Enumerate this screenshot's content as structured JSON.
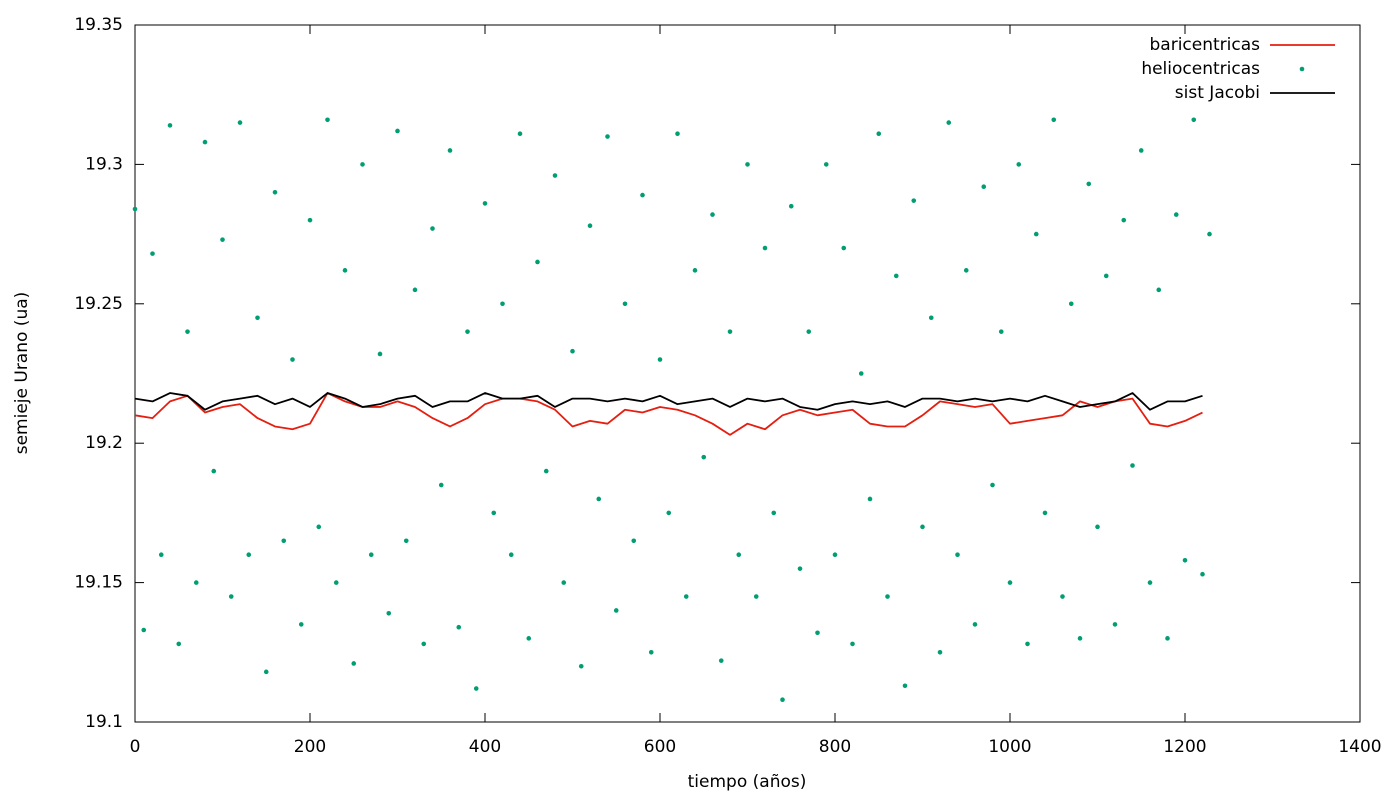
{
  "chart_data": {
    "type": "line",
    "xlabel": "tiempo (años)",
    "ylabel": "semieje Urano (ua)",
    "xlim": [
      0,
      1400
    ],
    "xticks": [
      0,
      200,
      400,
      600,
      800,
      1000,
      1200,
      1400
    ],
    "ylim": [
      19.1,
      19.35
    ],
    "yticks": [
      19.1,
      19.15,
      19.2,
      19.25,
      19.3,
      19.35
    ],
    "legend": "top-right",
    "grid": false,
    "series": [
      {
        "name": "baricentricas",
        "color": "#e51e10",
        "style": "line",
        "x": [
          0,
          20,
          40,
          60,
          80,
          100,
          120,
          140,
          160,
          180,
          200,
          220,
          240,
          260,
          280,
          300,
          320,
          340,
          360,
          380,
          400,
          420,
          440,
          460,
          480,
          500,
          520,
          540,
          560,
          580,
          600,
          620,
          640,
          660,
          680,
          700,
          720,
          740,
          760,
          780,
          800,
          820,
          840,
          860,
          880,
          900,
          920,
          940,
          960,
          980,
          1000,
          1020,
          1040,
          1060,
          1080,
          1100,
          1120,
          1140,
          1160,
          1180,
          1200,
          1220
        ],
        "values": [
          19.21,
          19.209,
          19.215,
          19.217,
          19.211,
          19.213,
          19.214,
          19.209,
          19.206,
          19.205,
          19.207,
          19.218,
          19.215,
          19.213,
          19.213,
          19.215,
          19.213,
          19.209,
          19.206,
          19.209,
          19.214,
          19.216,
          19.216,
          19.215,
          19.212,
          19.206,
          19.208,
          19.207,
          19.212,
          19.211,
          19.213,
          19.212,
          19.21,
          19.207,
          19.203,
          19.207,
          19.205,
          19.21,
          19.212,
          19.21,
          19.211,
          19.212,
          19.207,
          19.206,
          19.206,
          19.21,
          19.215,
          19.214,
          19.213,
          19.214,
          19.207,
          19.208,
          19.209,
          19.21,
          19.215,
          19.213,
          19.215,
          19.216,
          19.207,
          19.206,
          19.208,
          19.211
        ]
      },
      {
        "name": "heliocentricas",
        "color": "#009e73",
        "style": "points",
        "x": [
          0,
          10,
          20,
          30,
          40,
          50,
          60,
          70,
          80,
          90,
          100,
          110,
          120,
          130,
          140,
          150,
          160,
          170,
          180,
          190,
          200,
          210,
          220,
          230,
          240,
          250,
          260,
          270,
          280,
          290,
          300,
          310,
          320,
          330,
          340,
          350,
          360,
          370,
          380,
          390,
          400,
          410,
          420,
          430,
          440,
          450,
          460,
          470,
          480,
          490,
          500,
          510,
          520,
          530,
          540,
          550,
          560,
          570,
          580,
          590,
          600,
          610,
          620,
          630,
          640,
          650,
          660,
          670,
          680,
          690,
          700,
          710,
          720,
          730,
          740,
          750,
          760,
          770,
          780,
          790,
          800,
          810,
          820,
          830,
          840,
          850,
          860,
          870,
          880,
          890,
          900,
          910,
          920,
          930,
          940,
          950,
          960,
          970,
          980,
          990,
          1000,
          1010,
          1020,
          1030,
          1040,
          1050,
          1060,
          1070,
          1080,
          1090,
          1100,
          1110,
          1120,
          1130,
          1140,
          1150,
          1160,
          1170,
          1180,
          1190,
          1200,
          1210,
          1220,
          1228
        ],
        "values": [
          19.284,
          19.133,
          19.268,
          19.16,
          19.314,
          19.128,
          19.24,
          19.15,
          19.308,
          19.19,
          19.273,
          19.145,
          19.315,
          19.16,
          19.245,
          19.118,
          19.29,
          19.165,
          19.23,
          19.135,
          19.28,
          19.17,
          19.316,
          19.15,
          19.262,
          19.121,
          19.3,
          19.16,
          19.232,
          19.139,
          19.312,
          19.165,
          19.255,
          19.128,
          19.277,
          19.185,
          19.305,
          19.134,
          19.24,
          19.112,
          19.286,
          19.175,
          19.25,
          19.16,
          19.311,
          19.13,
          19.265,
          19.19,
          19.296,
          19.15,
          19.233,
          19.12,
          19.278,
          19.18,
          19.31,
          19.14,
          19.25,
          19.165,
          19.289,
          19.125,
          19.23,
          19.175,
          19.311,
          19.145,
          19.262,
          19.195,
          19.282,
          19.122,
          19.24,
          19.16,
          19.3,
          19.145,
          19.27,
          19.175,
          19.108,
          19.285,
          19.155,
          19.24,
          19.132,
          19.3,
          19.16,
          19.27,
          19.128,
          19.225,
          19.18,
          19.311,
          19.145,
          19.26,
          19.113,
          19.287,
          19.17,
          19.245,
          19.125,
          19.315,
          19.16,
          19.262,
          19.135,
          19.292,
          19.185,
          19.24,
          19.15,
          19.3,
          19.128,
          19.275,
          19.175,
          19.316,
          19.145,
          19.25,
          19.13,
          19.293,
          19.17,
          19.26,
          19.135,
          19.28,
          19.192,
          19.305,
          19.15,
          19.255,
          19.13,
          19.282,
          19.158,
          19.316,
          19.153,
          19.275
        ]
      },
      {
        "name": "sist Jacobi",
        "color": "#000000",
        "style": "line",
        "x": [
          0,
          20,
          40,
          60,
          80,
          100,
          120,
          140,
          160,
          180,
          200,
          220,
          240,
          260,
          280,
          300,
          320,
          340,
          360,
          380,
          400,
          420,
          440,
          460,
          480,
          500,
          520,
          540,
          560,
          580,
          600,
          620,
          640,
          660,
          680,
          700,
          720,
          740,
          760,
          780,
          800,
          820,
          840,
          860,
          880,
          900,
          920,
          940,
          960,
          980,
          1000,
          1020,
          1040,
          1060,
          1080,
          1100,
          1120,
          1140,
          1160,
          1180,
          1200,
          1220
        ],
        "values": [
          19.216,
          19.215,
          19.218,
          19.217,
          19.212,
          19.215,
          19.216,
          19.217,
          19.214,
          19.216,
          19.213,
          19.218,
          19.216,
          19.213,
          19.214,
          19.216,
          19.217,
          19.213,
          19.215,
          19.215,
          19.218,
          19.216,
          19.216,
          19.217,
          19.213,
          19.216,
          19.216,
          19.215,
          19.216,
          19.215,
          19.217,
          19.214,
          19.215,
          19.216,
          19.213,
          19.216,
          19.215,
          19.216,
          19.213,
          19.212,
          19.214,
          19.215,
          19.214,
          19.215,
          19.213,
          19.216,
          19.216,
          19.215,
          19.216,
          19.215,
          19.216,
          19.215,
          19.217,
          19.215,
          19.213,
          19.214,
          19.215,
          19.218,
          19.212,
          19.215,
          19.215,
          19.217
        ]
      }
    ]
  }
}
